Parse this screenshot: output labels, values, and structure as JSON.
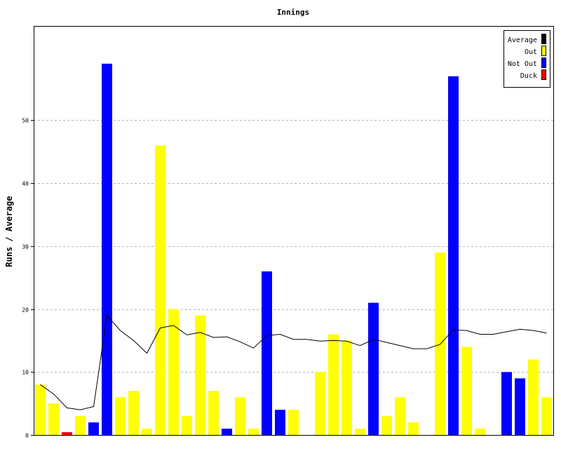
{
  "chart_data": {
    "type": "bar",
    "title": "Innings",
    "ylabel": "Runs / Average",
    "xlabel": "",
    "ylim": [
      0,
      65
    ],
    "yticks": [
      0,
      10,
      20,
      30,
      40,
      50
    ],
    "grid": true,
    "legend_position": "top-right",
    "legend": [
      {
        "label": "Average",
        "color": "#000000"
      },
      {
        "label": "Out",
        "color": "#ffff00"
      },
      {
        "label": "Not Out",
        "color": "#0000ff"
      },
      {
        "label": "Duck",
        "color": "#ff0000"
      }
    ],
    "innings": [
      {
        "runs": 8,
        "status": "out"
      },
      {
        "runs": 5,
        "status": "out"
      },
      {
        "runs": 0,
        "status": "duck"
      },
      {
        "runs": 3,
        "status": "out"
      },
      {
        "runs": 2,
        "status": "not_out"
      },
      {
        "runs": 59,
        "status": "not_out"
      },
      {
        "runs": 6,
        "status": "out"
      },
      {
        "runs": 7,
        "status": "out"
      },
      {
        "runs": 1,
        "status": "out"
      },
      {
        "runs": 46,
        "status": "out"
      },
      {
        "runs": 20,
        "status": "out"
      },
      {
        "runs": 3,
        "status": "out"
      },
      {
        "runs": 19,
        "status": "out"
      },
      {
        "runs": 7,
        "status": "out"
      },
      {
        "runs": 1,
        "status": "not_out"
      },
      {
        "runs": 6,
        "status": "out"
      },
      {
        "runs": 1,
        "status": "out"
      },
      {
        "runs": 26,
        "status": "not_out"
      },
      {
        "runs": 4,
        "status": "not_out"
      },
      {
        "runs": 4,
        "status": "out"
      },
      {
        "runs": 0,
        "status": "none"
      },
      {
        "runs": 10,
        "status": "out"
      },
      {
        "runs": 16,
        "status": "out"
      },
      {
        "runs": 15,
        "status": "out"
      },
      {
        "runs": 1,
        "status": "out"
      },
      {
        "runs": 21,
        "status": "not_out"
      },
      {
        "runs": 3,
        "status": "out"
      },
      {
        "runs": 6,
        "status": "out"
      },
      {
        "runs": 2,
        "status": "out"
      },
      {
        "runs": 0,
        "status": "none"
      },
      {
        "runs": 29,
        "status": "out"
      },
      {
        "runs": 57,
        "status": "not_out"
      },
      {
        "runs": 14,
        "status": "out"
      },
      {
        "runs": 1,
        "status": "out"
      },
      {
        "runs": 0,
        "status": "none"
      },
      {
        "runs": 10,
        "status": "not_out"
      },
      {
        "runs": 9,
        "status": "not_out"
      },
      {
        "runs": 12,
        "status": "out"
      },
      {
        "runs": 6,
        "status": "out"
      }
    ],
    "average": [
      8,
      6.5,
      4.3,
      4,
      4.5,
      19,
      16.6,
      15,
      13,
      17,
      17.4,
      15.9,
      16.3,
      15.5,
      15.6,
      14.8,
      13.8,
      15.8,
      16,
      15.2,
      15.2,
      14.9,
      15,
      14.9,
      14.2,
      15.2,
      14.7,
      14.2,
      13.7,
      13.7,
      14.4,
      16.7,
      16.6,
      16,
      16,
      16.4,
      16.8,
      16.6,
      16.2
    ]
  }
}
